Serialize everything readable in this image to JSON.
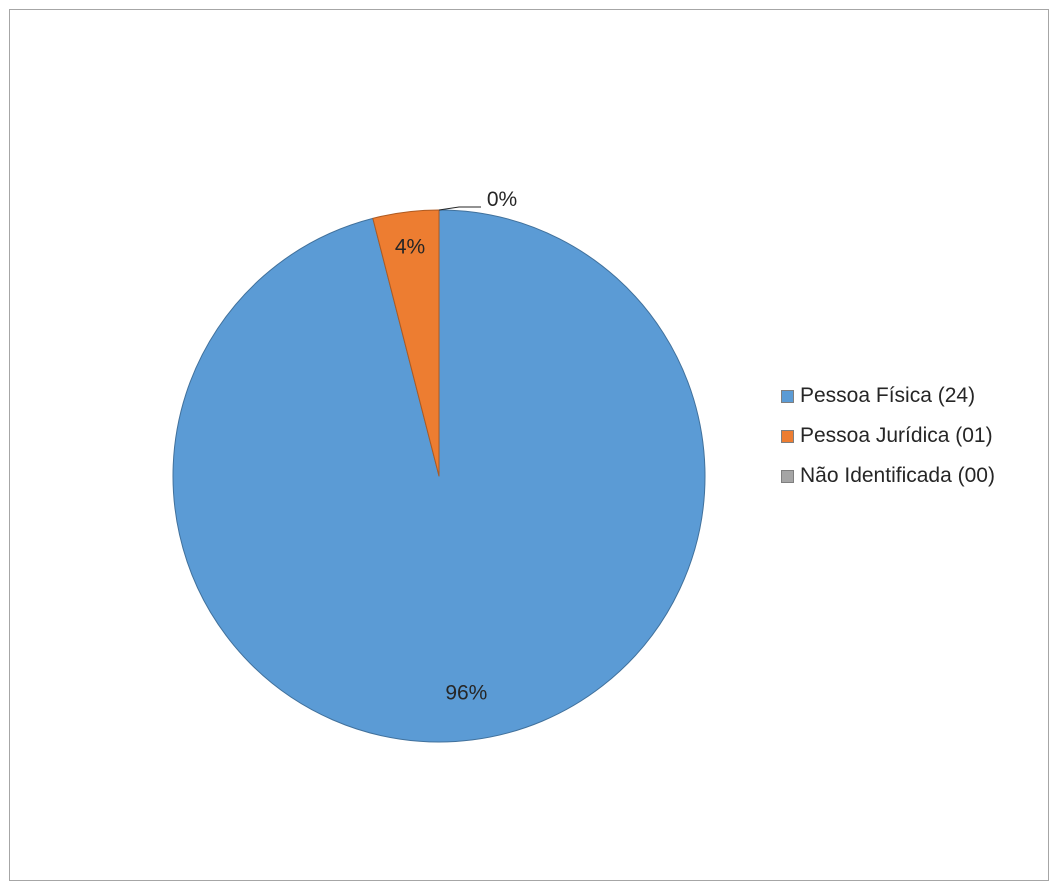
{
  "chart_data": {
    "type": "pie",
    "title": "",
    "slices": [
      {
        "label": "Pessoa Física (24)",
        "value": 24,
        "percent_label": "96%",
        "color": "#5b9bd5"
      },
      {
        "label": "Pessoa Jurídica (01)",
        "value": 1,
        "percent_label": "4%",
        "color": "#ed7d31"
      },
      {
        "label": "Não Identificada (00)",
        "value": 0,
        "percent_label": "0%",
        "color": "#a5a5a5"
      }
    ],
    "legend_position": "right"
  }
}
